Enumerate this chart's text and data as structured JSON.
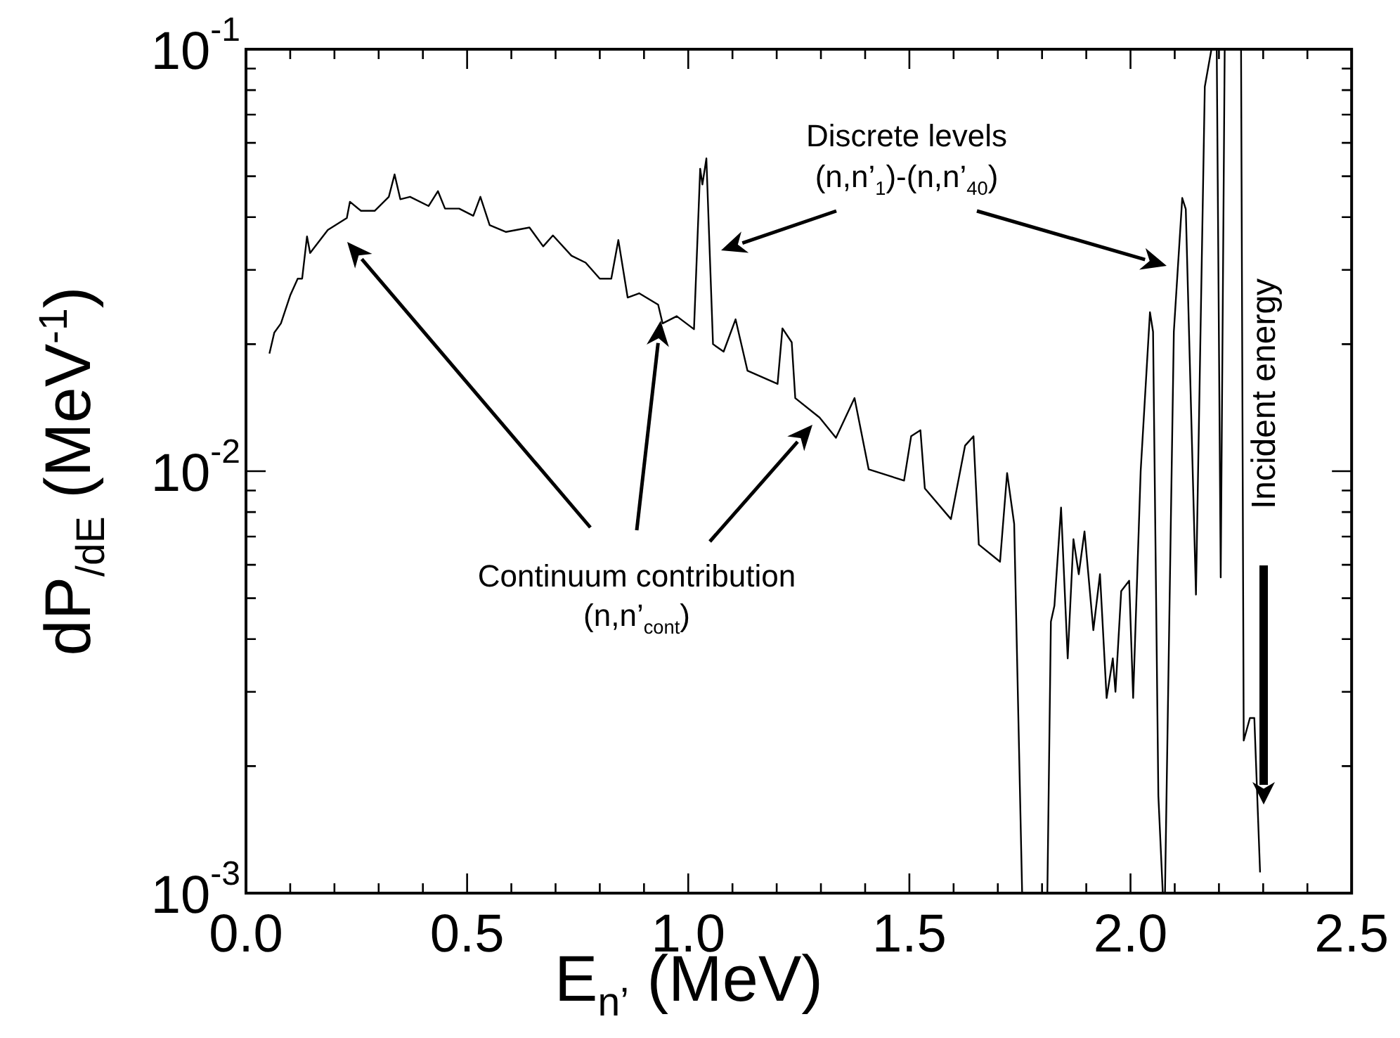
{
  "chart_data": {
    "type": "line",
    "xlabel": "E$_{n’}$ (MeV)",
    "ylabel": "dP$_{/dE}$ (MeV$^{-1}$)",
    "annotations": [
      "Discrete levels",
      "(n,n’$_{1}$)-(n,n’$_{40}$)",
      "Continuum contribution",
      "(n,n’$_{cont}$)",
      "Incident energy"
    ],
    "x": [
      0.053,
      0.064,
      0.079,
      0.1,
      0.117,
      0.127,
      0.138,
      0.145,
      0.185,
      0.228,
      0.235,
      0.26,
      0.291,
      0.323,
      0.336,
      0.349,
      0.371,
      0.413,
      0.434,
      0.45,
      0.482,
      0.514,
      0.53,
      0.551,
      0.588,
      0.641,
      0.672,
      0.694,
      0.736,
      0.768,
      0.8,
      0.826,
      0.842,
      0.863,
      0.889,
      0.932,
      0.942,
      0.974,
      1.013,
      1.027,
      1.032,
      1.041,
      1.056,
      1.08,
      1.107,
      1.134,
      1.202,
      1.213,
      1.234,
      1.242,
      1.297,
      1.334,
      1.376,
      1.408,
      1.488,
      1.504,
      1.525,
      1.535,
      1.594,
      1.626,
      1.645,
      1.657,
      1.705,
      1.721,
      1.737,
      1.755,
      1.812,
      1.82,
      1.828,
      1.843,
      1.858,
      1.871,
      1.883,
      1.896,
      1.916,
      1.931,
      1.946,
      1.96,
      1.966,
      1.979,
      1.997,
      2.006,
      2.023,
      2.044,
      2.051,
      2.063,
      2.073,
      2.078,
      2.098,
      2.117,
      2.125,
      2.148,
      2.168,
      2.183,
      2.195,
      2.204,
      2.213,
      2.25,
      2.256,
      2.27,
      2.28,
      2.293
    ],
    "values": [
      0.019,
      0.0213,
      0.0224,
      0.0261,
      0.0286,
      0.0286,
      0.036,
      0.0329,
      0.0373,
      0.0398,
      0.0435,
      0.0414,
      0.0414,
      0.0447,
      0.0505,
      0.0441,
      0.0447,
      0.0425,
      0.0461,
      0.0419,
      0.0419,
      0.0403,
      0.0447,
      0.0383,
      0.0369,
      0.0378,
      0.0341,
      0.0362,
      0.0324,
      0.0312,
      0.0286,
      0.0286,
      0.0353,
      0.0258,
      0.0264,
      0.0248,
      0.0224,
      0.0233,
      0.0217,
      0.0521,
      0.0478,
      0.0551,
      0.02,
      0.0192,
      0.0229,
      0.0173,
      0.0161,
      0.0218,
      0.0202,
      0.0149,
      0.0134,
      0.012,
      0.0149,
      0.0101,
      0.0095,
      0.0121,
      0.0125,
      0.0091,
      0.0077,
      0.0115,
      0.0121,
      0.0067,
      0.0061,
      0.0099,
      0.0075,
      0.001,
      0.001,
      0.0044,
      0.0048,
      0.0082,
      0.0036,
      0.0069,
      0.0057,
      0.0072,
      0.0042,
      0.0057,
      0.0029,
      0.0036,
      0.003,
      0.0052,
      0.0055,
      0.0029,
      0.01,
      0.0238,
      0.0214,
      0.0017,
      0.001,
      0.001,
      0.0214,
      0.0444,
      0.0418,
      0.0051,
      0.0815,
      0.1,
      0.1,
      0.0056,
      0.1,
      0.1,
      0.0023,
      0.0026,
      0.0026,
      0.00112
    ],
    "color": "#000000",
    "marker": "none",
    "line_style": "solid",
    "log": "y",
    "grid": false,
    "legend": false,
    "xlim": [
      0,
      2.5
    ],
    "ylim": [
      0.001,
      0.1
    ],
    "xticks": [
      {
        "value": 0,
        "label": "0.0"
      },
      {
        "value": 0.1,
        "label": null
      },
      {
        "value": 0.2,
        "label": null
      },
      {
        "value": 0.3,
        "label": null
      },
      {
        "value": 0.4,
        "label": null
      },
      {
        "value": 0.5,
        "label": "0.5"
      },
      {
        "value": 0.6,
        "label": null
      },
      {
        "value": 0.7,
        "label": null
      },
      {
        "value": 0.8,
        "label": null
      },
      {
        "value": 0.9,
        "label": null
      },
      {
        "value": 1,
        "label": "1.0"
      },
      {
        "value": 1.1,
        "label": null
      },
      {
        "value": 1.2,
        "label": null
      },
      {
        "value": 1.3,
        "label": null
      },
      {
        "value": 1.4,
        "label": null
      },
      {
        "value": 1.5,
        "label": "1.5"
      },
      {
        "value": 1.6,
        "label": null
      },
      {
        "value": 1.7,
        "label": null
      },
      {
        "value": 1.8,
        "label": null
      },
      {
        "value": 1.9,
        "label": null
      },
      {
        "value": 2,
        "label": "2.0"
      },
      {
        "value": 2.1,
        "label": null
      },
      {
        "value": 2.2,
        "label": null
      },
      {
        "value": 2.3,
        "label": null
      },
      {
        "value": 2.4,
        "label": null
      },
      {
        "value": 2.5,
        "label": "2.5"
      }
    ],
    "yticks": [
      {
        "value": 0.001,
        "label": "10$^{-3}$"
      },
      {
        "value": 0.002,
        "label": null
      },
      {
        "value": 0.003,
        "label": null
      },
      {
        "value": 0.004,
        "label": null
      },
      {
        "value": 0.005,
        "label": null
      },
      {
        "value": 0.006,
        "label": null
      },
      {
        "value": 0.007,
        "label": null
      },
      {
        "value": 0.008,
        "label": null
      },
      {
        "value": 0.009,
        "label": null
      },
      {
        "value": 0.01,
        "label": "10$^{-2}$"
      },
      {
        "value": 0.02,
        "label": null
      },
      {
        "value": 0.03,
        "label": null
      },
      {
        "value": 0.04,
        "label": null
      },
      {
        "value": 0.05,
        "label": null
      },
      {
        "value": 0.06,
        "label": null
      },
      {
        "value": 0.07,
        "label": null
      },
      {
        "value": 0.08,
        "label": null
      },
      {
        "value": 0.09,
        "label": null
      },
      {
        "value": 0.1,
        "label": "10$^{-1}$"
      }
    ]
  }
}
